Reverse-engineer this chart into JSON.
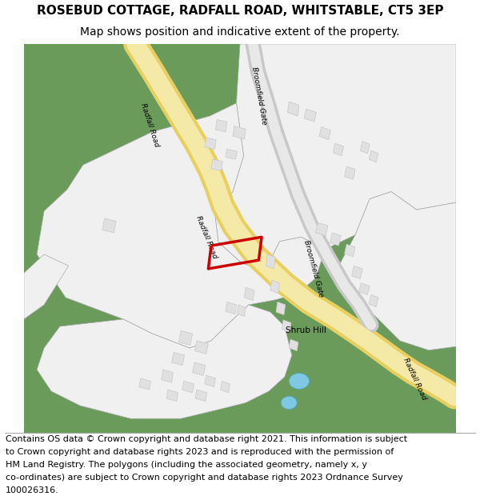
{
  "title": "ROSEBUD COTTAGE, RADFALL ROAD, WHITSTABLE, CT5 3EP",
  "subtitle": "Map shows position and indicative extent of the property.",
  "footer_lines": [
    "Contains OS data © Crown copyright and database right 2021. This information is subject",
    "to Crown copyright and database rights 2023 and is reproduced with the permission of",
    "HM Land Registry. The polygons (including the associated geometry, namely x, y",
    "co-ordinates) are subject to Crown copyright and database rights 2023 Ordnance Survey",
    "100026316."
  ],
  "bg_color": "#6b9b5b",
  "road_yellow_inner": "#f5e9a8",
  "road_yellow_outer": "#e8d060",
  "white_area": "#f0f0f0",
  "bldg_fill": "#e0e0e0",
  "bldg_edge": "#c8c8c8",
  "water": "#7ec8e3",
  "highlight": "#cc0000",
  "grey_road_inner": "#e8e8e8",
  "grey_road_outer": "#c8c8c8",
  "title_fontsize": 11,
  "subtitle_fontsize": 10,
  "footer_fontsize": 8.0
}
